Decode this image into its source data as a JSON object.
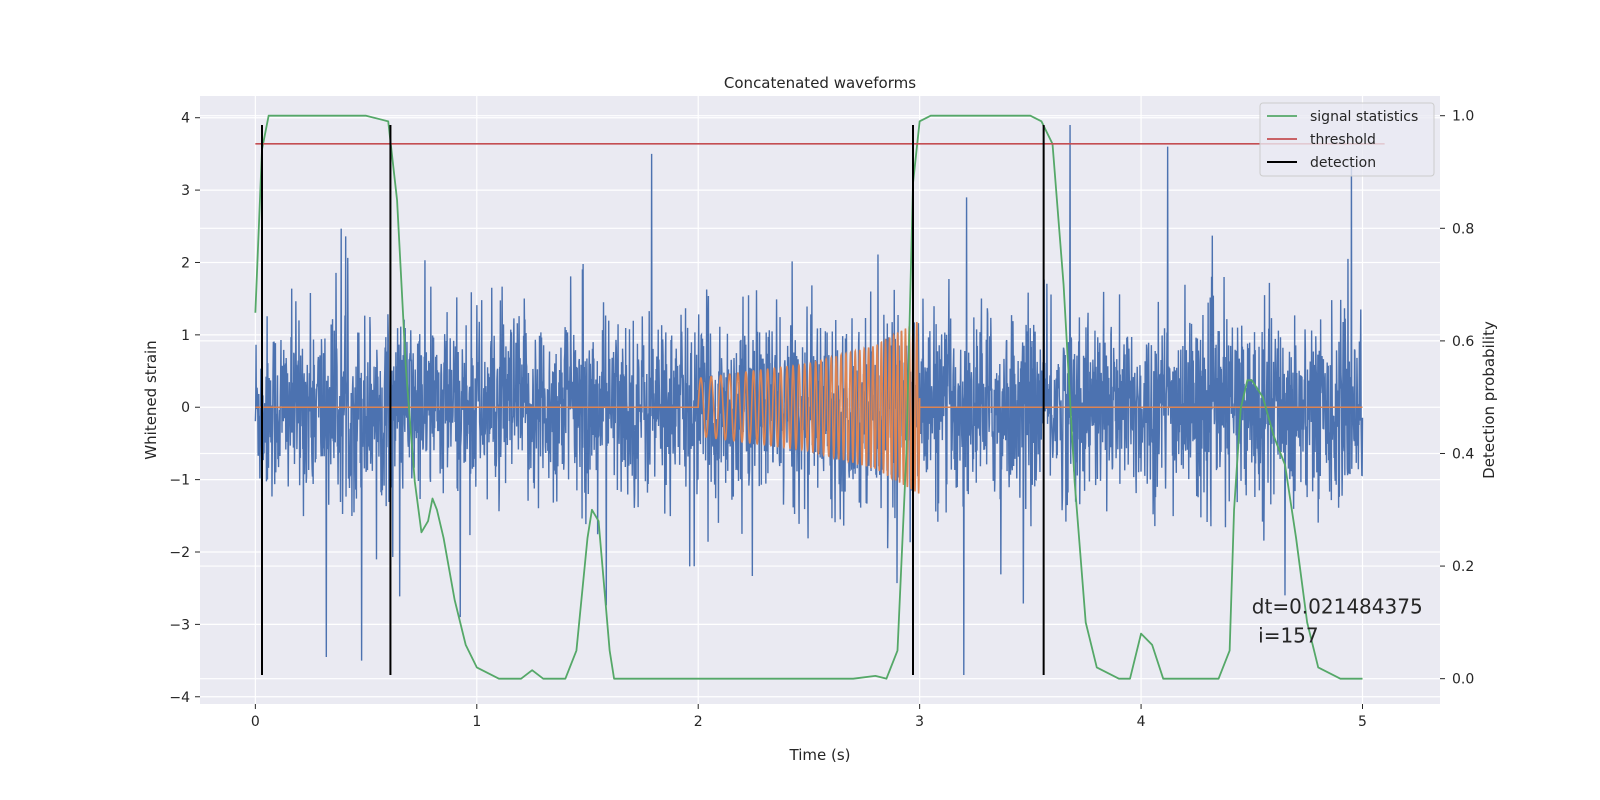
{
  "chart_data": {
    "type": "line",
    "title": "Concatenated waveforms",
    "xlabel": "Time (s)",
    "ylabel": "Whitened strain",
    "ylabel_right": "Detection probability",
    "xlim": [
      -0.25,
      5.35
    ],
    "ylim": [
      -4.1,
      4.3
    ],
    "ylim_right": [
      -0.045,
      1.035
    ],
    "x_ticks": [
      0,
      1,
      2,
      3,
      4,
      5
    ],
    "y_ticks": [
      -4,
      -3,
      -2,
      -1,
      0,
      1,
      2,
      3,
      4
    ],
    "y_ticks_right": [
      0.0,
      0.2,
      0.4,
      0.6,
      0.8,
      1.0
    ],
    "x_tick_labels": [
      "0",
      "1",
      "2",
      "3",
      "4",
      "5"
    ],
    "y_tick_labels": [
      "−4",
      "−3",
      "−2",
      "−1",
      "0",
      "1",
      "2",
      "3",
      "4"
    ],
    "y_tick_labels_right": [
      "0.0",
      "0.2",
      "0.4",
      "0.6",
      "0.8",
      "1.0"
    ],
    "grid": true,
    "legend_position": "top-right",
    "colors": {
      "noise": "#4c72b0",
      "waveform": "#dd8452",
      "signal_statistics": "#55a868",
      "threshold": "#c44e52",
      "detection": "#000000",
      "plot_background": "#eaeaf2"
    },
    "series": [
      {
        "name": "",
        "axis": "left",
        "description_kind": "noise",
        "x_range": [
          0.0,
          5.0
        ],
        "amplitude_envelope": 1.5,
        "peak_values": [
          {
            "x": 0.03,
            "y": -2.6
          },
          {
            "x": 0.32,
            "y": -3.45
          },
          {
            "x": 0.48,
            "y": -3.5
          },
          {
            "x": 1.79,
            "y": 3.5
          },
          {
            "x": 2.97,
            "y": 3.6
          },
          {
            "x": 3.2,
            "y": -3.7
          },
          {
            "x": 3.68,
            "y": 3.9
          },
          {
            "x": 4.12,
            "y": 3.6
          },
          {
            "x": 4.65,
            "y": -2.6
          },
          {
            "x": 4.95,
            "y": 3.4
          }
        ]
      },
      {
        "name": "",
        "axis": "left",
        "description_kind": "chirp",
        "x": [
          0.0,
          2.0,
          2.5,
          2.8,
          3.0,
          3.01,
          5.0
        ],
        "amplitude": [
          0.0,
          0.4,
          0.6,
          0.85,
          1.2,
          0.0,
          0.0
        ],
        "chirp_start": 2.0,
        "chirp_end": 3.0
      },
      {
        "name": "signal statistics",
        "axis": "right",
        "x": [
          0.0,
          0.03,
          0.06,
          0.1,
          0.5,
          0.6,
          0.64,
          0.68,
          0.72,
          0.75,
          0.78,
          0.8,
          0.82,
          0.85,
          0.9,
          0.95,
          1.0,
          1.1,
          1.2,
          1.25,
          1.3,
          1.4,
          1.45,
          1.5,
          1.52,
          1.55,
          1.6,
          1.62,
          1.7,
          2.0,
          2.4,
          2.7,
          2.8,
          2.85,
          2.9,
          2.94,
          2.97,
          3.0,
          3.05,
          3.5,
          3.55,
          3.6,
          3.65,
          3.7,
          3.75,
          3.8,
          3.9,
          3.95,
          4.0,
          4.05,
          4.1,
          4.2,
          4.35,
          4.4,
          4.42,
          4.45,
          4.48,
          4.5,
          4.55,
          4.6,
          4.65,
          4.7,
          4.75,
          4.8,
          4.9,
          5.0
        ],
        "y": [
          0.65,
          0.94,
          1.0,
          1.0,
          1.0,
          0.99,
          0.85,
          0.55,
          0.35,
          0.26,
          0.28,
          0.32,
          0.3,
          0.25,
          0.14,
          0.06,
          0.02,
          0.0,
          0.0,
          0.015,
          0.0,
          0.0,
          0.05,
          0.25,
          0.3,
          0.28,
          0.05,
          0.0,
          0.0,
          0.0,
          0.0,
          0.0,
          0.005,
          0.0,
          0.05,
          0.4,
          0.88,
          0.99,
          1.0,
          1.0,
          0.99,
          0.95,
          0.7,
          0.35,
          0.1,
          0.02,
          0.0,
          0.0,
          0.08,
          0.06,
          0.0,
          0.0,
          0.0,
          0.05,
          0.3,
          0.48,
          0.53,
          0.53,
          0.5,
          0.43,
          0.38,
          0.25,
          0.1,
          0.02,
          0.0,
          0.0
        ]
      },
      {
        "name": "threshold",
        "axis": "right",
        "x": [
          0.0,
          5.1
        ],
        "y": [
          0.95,
          0.95
        ]
      },
      {
        "name": "detection",
        "axis": "left",
        "vertical_lines_x": [
          0.03,
          0.61,
          2.97,
          3.56
        ],
        "y_range": [
          -3.7,
          3.9
        ]
      }
    ],
    "annotations": [
      {
        "text": "dt=0.021484375",
        "x": 4.5,
        "y": -2.85
      },
      {
        "text": " i=157",
        "x": 4.5,
        "y": -3.25
      }
    ]
  }
}
